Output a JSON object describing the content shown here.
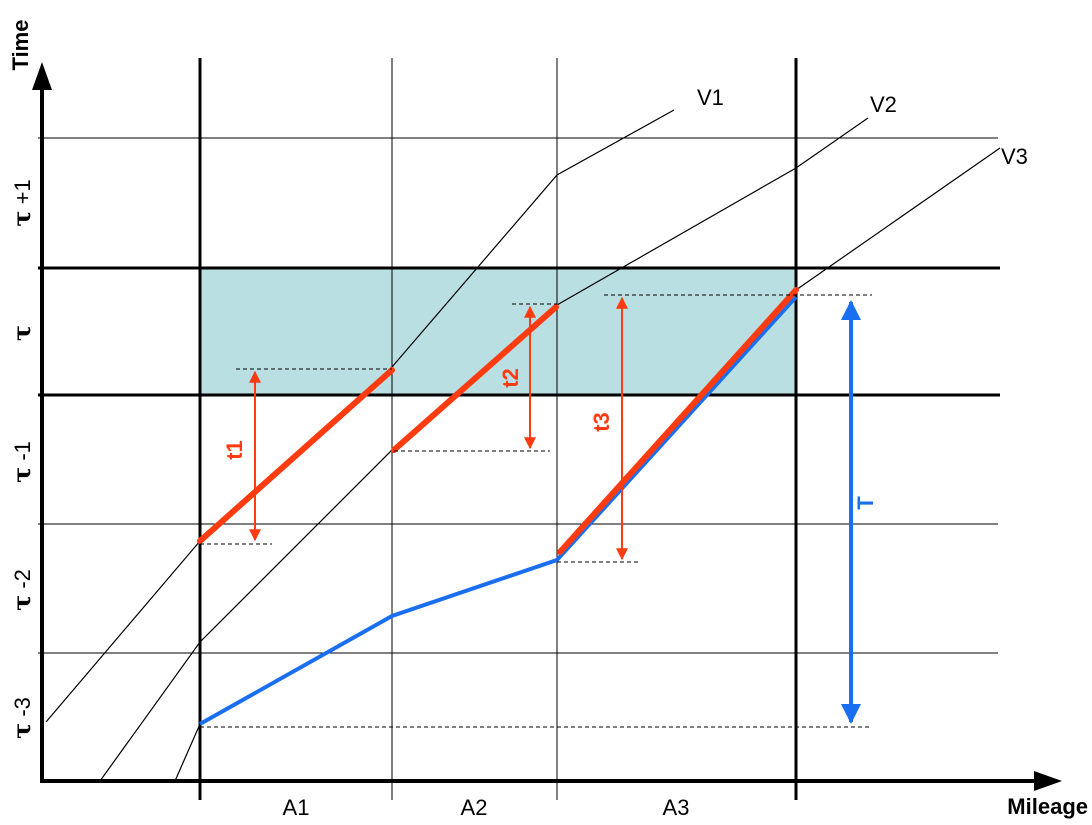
{
  "axes": {
    "y_title": "Time",
    "x_title": "Mileage"
  },
  "y_ticks": [
    {
      "symbol": "τ",
      "suffix": " +1"
    },
    {
      "symbol": "τ",
      "suffix": ""
    },
    {
      "symbol": "τ",
      "suffix": " -1"
    },
    {
      "symbol": "τ",
      "suffix": " -2"
    },
    {
      "symbol": "τ",
      "suffix": " -3"
    }
  ],
  "x_sections": [
    "A1",
    "A2",
    "A3"
  ],
  "curves": [
    "V1",
    "V2",
    "V3"
  ],
  "intervals": {
    "t1": "t1",
    "t2": "t2",
    "t3": "t3",
    "total": "T"
  },
  "colors": {
    "highlight_band": "#b9dfe2",
    "red": "#ff3b0f",
    "blue": "#1a6ff0",
    "black": "#000000"
  }
}
